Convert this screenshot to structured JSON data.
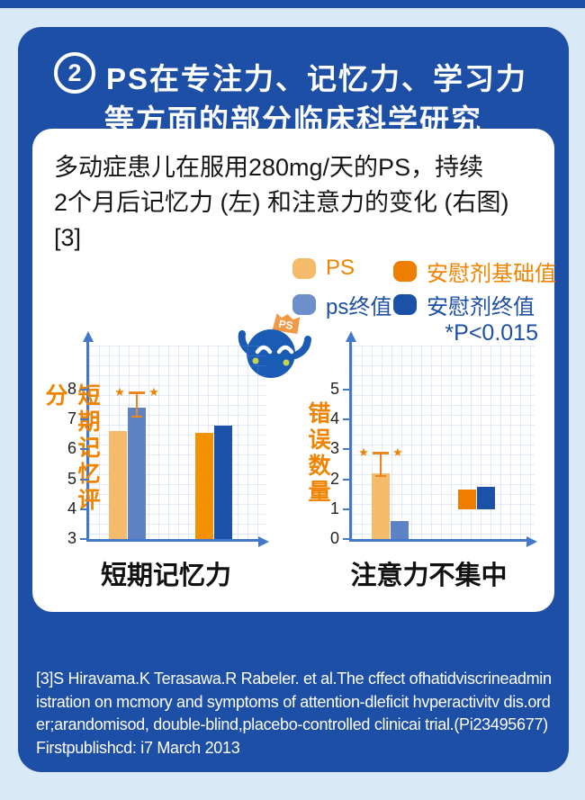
{
  "page": {
    "background": "#d9e9f8",
    "panel_blue": "#1e4fa6",
    "accent_orange": "#f08300"
  },
  "header": {
    "badge_number": "2",
    "title_line1": "PS在专注力、记忆力、学习力",
    "title_line2": "等方面的部分临床科学研究"
  },
  "description": {
    "line1": "多动症患儿在服用280mg/天的PS，持续",
    "line2": "2个月后记忆力 (左) 和注意力的变化 (右图)",
    "line3": "[3]"
  },
  "legend": {
    "items": [
      {
        "label": "PS",
        "swatch_color": "#f4bb6b",
        "label_color": "#f08300"
      },
      {
        "label": "安慰剂基础值",
        "swatch_color": "#ef7d00",
        "label_color": "#f08300"
      },
      {
        "label": "ps终值",
        "swatch_color": "#6d8fca",
        "label_color": "#1d4fa4"
      },
      {
        "label": "安慰剂终值",
        "swatch_color": "#1c51a8",
        "label_color": "#1d4fa4"
      }
    ],
    "p_value": "*P<0.015"
  },
  "mascot": {
    "flag_label": "PS"
  },
  "chart_data": [
    {
      "type": "bar",
      "title": "短期记忆力",
      "ylabel": "短期记忆评分",
      "ylim": [
        3,
        8
      ],
      "yticks": [
        3,
        4,
        5,
        6,
        7,
        8
      ],
      "grid": true,
      "series": [
        {
          "name": "PS",
          "value": 6.6,
          "color": "#f4bb6b"
        },
        {
          "name": "ps终值",
          "value": 7.4,
          "color": "#5d82c6",
          "error_low": 7.1,
          "error_high": 7.9,
          "significance": "★"
        },
        {
          "name": "安慰剂基础值",
          "value": 6.55,
          "color": "#f29200"
        },
        {
          "name": "安慰剂终值",
          "value": 6.8,
          "color": "#1c53a8"
        }
      ]
    },
    {
      "type": "bar",
      "title": "注意力不集中",
      "ylabel": "错误数量",
      "ylim": [
        0,
        5
      ],
      "yticks": [
        0,
        1,
        2,
        3,
        4,
        5
      ],
      "grid": true,
      "series": [
        {
          "name": "PS",
          "value": 2.2,
          "color": "#f4bb6b",
          "error_low": 2.1,
          "error_high": 2.9,
          "significance": "★"
        },
        {
          "name": "ps终值",
          "value": 0.6,
          "color": "#5d82c6"
        },
        {
          "name": "安慰剂基础值",
          "value": 1.65,
          "base": 1.0,
          "color": "#ef7d00"
        },
        {
          "name": "安慰剂终值",
          "value": 1.75,
          "base": 1.0,
          "color": "#1c51a8"
        }
      ]
    }
  ],
  "citation": {
    "text": "[3]S Hiravama.K Terasawa.R Rabeler. et al.The cffect ofhatidviscrineadministration on mcmory and symptoms of attention-dleficit hvperactivitv dis.order;arandomisod, double-blind,placebo-controlled clinicai trial.(Pi23495677) Firstpublishcd: i7 March 2013"
  }
}
